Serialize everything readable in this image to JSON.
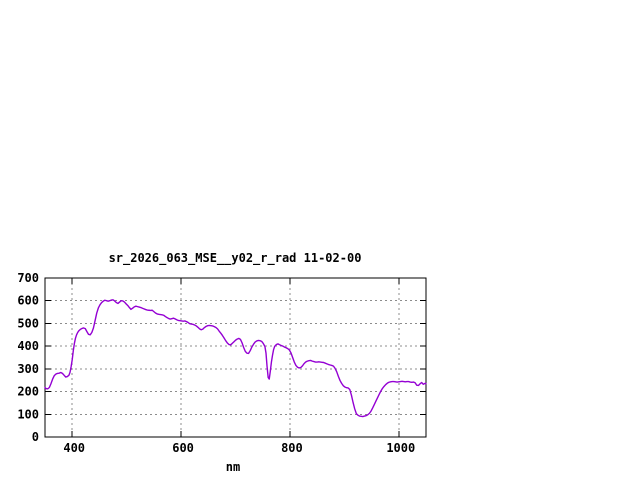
{
  "window": {
    "background_color": "#ffffff"
  },
  "chart_data": {
    "type": "line",
    "title": "sr_2026_063_MSE__y02_r_rad 11-02-00",
    "xlabel": "nm",
    "ylabel": "",
    "xlim": [
      350,
      1050
    ],
    "ylim": [
      0,
      700
    ],
    "xticks": [
      400,
      600,
      800,
      1000
    ],
    "yticks": [
      0,
      100,
      200,
      300,
      400,
      500,
      600,
      700
    ],
    "grid": true,
    "legend": "none",
    "line_color": "#9400d3",
    "grid_color": "#8c8c8c",
    "border_color": "#000000",
    "text_color": "#000000",
    "series": [
      {
        "name": "sr_2026_063_MSE__y02_r_rad",
        "points": [
          [
            350,
            218
          ],
          [
            352,
            213
          ],
          [
            355,
            212
          ],
          [
            358,
            218
          ],
          [
            361,
            235
          ],
          [
            364,
            255
          ],
          [
            367,
            270
          ],
          [
            370,
            277
          ],
          [
            373,
            280
          ],
          [
            376,
            281
          ],
          [
            379,
            284
          ],
          [
            382,
            280
          ],
          [
            385,
            272
          ],
          [
            388,
            264
          ],
          [
            391,
            266
          ],
          [
            394,
            272
          ],
          [
            396,
            285
          ],
          [
            398,
            310
          ],
          [
            400,
            340
          ],
          [
            402,
            380
          ],
          [
            404,
            412
          ],
          [
            406,
            435
          ],
          [
            408,
            450
          ],
          [
            410,
            460
          ],
          [
            412,
            467
          ],
          [
            415,
            474
          ],
          [
            418,
            478
          ],
          [
            421,
            480
          ],
          [
            424,
            477
          ],
          [
            427,
            464
          ],
          [
            430,
            452
          ],
          [
            433,
            450
          ],
          [
            436,
            460
          ],
          [
            439,
            480
          ],
          [
            442,
            512
          ],
          [
            445,
            545
          ],
          [
            448,
            568
          ],
          [
            451,
            582
          ],
          [
            454,
            592
          ],
          [
            457,
            598
          ],
          [
            460,
            602
          ],
          [
            463,
            600
          ],
          [
            466,
            598
          ],
          [
            469,
            600
          ],
          [
            472,
            603
          ],
          [
            475,
            604
          ],
          [
            478,
            599
          ],
          [
            481,
            592
          ],
          [
            484,
            588
          ],
          [
            487,
            594
          ],
          [
            490,
            600
          ],
          [
            493,
            599
          ],
          [
            496,
            594
          ],
          [
            499,
            586
          ],
          [
            502,
            579
          ],
          [
            505,
            570
          ],
          [
            508,
            562
          ],
          [
            511,
            567
          ],
          [
            514,
            573
          ],
          [
            517,
            576
          ],
          [
            520,
            574
          ],
          [
            523,
            572
          ],
          [
            526,
            570
          ],
          [
            529,
            567
          ],
          [
            532,
            564
          ],
          [
            535,
            561
          ],
          [
            538,
            559
          ],
          [
            541,
            558
          ],
          [
            544,
            557
          ],
          [
            547,
            558
          ],
          [
            550,
            552
          ],
          [
            553,
            546
          ],
          [
            556,
            542
          ],
          [
            559,
            540
          ],
          [
            562,
            539
          ],
          [
            565,
            538
          ],
          [
            568,
            536
          ],
          [
            571,
            531
          ],
          [
            574,
            526
          ],
          [
            577,
            522
          ],
          [
            580,
            519
          ],
          [
            583,
            521
          ],
          [
            586,
            523
          ],
          [
            589,
            520
          ],
          [
            592,
            516
          ],
          [
            595,
            513
          ],
          [
            598,
            512
          ],
          [
            601,
            511
          ],
          [
            604,
            510
          ],
          [
            607,
            511
          ],
          [
            610,
            508
          ],
          [
            613,
            504
          ],
          [
            616,
            499
          ],
          [
            619,
            497
          ],
          [
            622,
            496
          ],
          [
            625,
            493
          ],
          [
            628,
            489
          ],
          [
            631,
            483
          ],
          [
            634,
            476
          ],
          [
            637,
            472
          ],
          [
            640,
            475
          ],
          [
            643,
            482
          ],
          [
            646,
            487
          ],
          [
            649,
            490
          ],
          [
            652,
            491
          ],
          [
            655,
            490
          ],
          [
            658,
            489
          ],
          [
            661,
            486
          ],
          [
            664,
            482
          ],
          [
            667,
            476
          ],
          [
            670,
            466
          ],
          [
            673,
            457
          ],
          [
            676,
            447
          ],
          [
            679,
            436
          ],
          [
            682,
            424
          ],
          [
            685,
            414
          ],
          [
            688,
            407
          ],
          [
            691,
            406
          ],
          [
            694,
            412
          ],
          [
            697,
            419
          ],
          [
            700,
            426
          ],
          [
            703,
            431
          ],
          [
            706,
            434
          ],
          [
            709,
            430
          ],
          [
            712,
            415
          ],
          [
            715,
            394
          ],
          [
            718,
            377
          ],
          [
            721,
            369
          ],
          [
            724,
            368
          ],
          [
            727,
            380
          ],
          [
            730,
            396
          ],
          [
            733,
            408
          ],
          [
            736,
            418
          ],
          [
            739,
            423
          ],
          [
            742,
            425
          ],
          [
            745,
            424
          ],
          [
            748,
            421
          ],
          [
            751,
            412
          ],
          [
            754,
            399
          ],
          [
            756,
            370
          ],
          [
            758,
            310
          ],
          [
            760,
            262
          ],
          [
            762,
            255
          ],
          [
            764,
            290
          ],
          [
            766,
            330
          ],
          [
            768,
            360
          ],
          [
            770,
            385
          ],
          [
            772,
            399
          ],
          [
            775,
            407
          ],
          [
            778,
            410
          ],
          [
            781,
            406
          ],
          [
            784,
            403
          ],
          [
            787,
            400
          ],
          [
            790,
            396
          ],
          [
            793,
            393
          ],
          [
            796,
            389
          ],
          [
            799,
            383
          ],
          [
            802,
            370
          ],
          [
            805,
            350
          ],
          [
            808,
            330
          ],
          [
            811,
            315
          ],
          [
            814,
            307
          ],
          [
            817,
            304
          ],
          [
            820,
            306
          ],
          [
            823,
            313
          ],
          [
            826,
            323
          ],
          [
            829,
            330
          ],
          [
            832,
            334
          ],
          [
            835,
            336
          ],
          [
            838,
            337
          ],
          [
            841,
            334
          ],
          [
            844,
            332
          ],
          [
            847,
            330
          ],
          [
            850,
            330
          ],
          [
            853,
            331
          ],
          [
            856,
            330
          ],
          [
            859,
            329
          ],
          [
            862,
            328
          ],
          [
            865,
            325
          ],
          [
            868,
            322
          ],
          [
            871,
            319
          ],
          [
            874,
            317
          ],
          [
            877,
            315
          ],
          [
            880,
            312
          ],
          [
            883,
            302
          ],
          [
            886,
            287
          ],
          [
            889,
            267
          ],
          [
            892,
            249
          ],
          [
            895,
            236
          ],
          [
            898,
            226
          ],
          [
            901,
            220
          ],
          [
            904,
            217
          ],
          [
            907,
            216
          ],
          [
            910,
            209
          ],
          [
            913,
            184
          ],
          [
            916,
            152
          ],
          [
            919,
            124
          ],
          [
            922,
            103
          ],
          [
            925,
            96
          ],
          [
            928,
            92
          ],
          [
            931,
            91
          ],
          [
            934,
            90
          ],
          [
            937,
            92
          ],
          [
            940,
            94
          ],
          [
            943,
            98
          ],
          [
            946,
            104
          ],
          [
            949,
            114
          ],
          [
            952,
            128
          ],
          [
            955,
            143
          ],
          [
            958,
            158
          ],
          [
            961,
            173
          ],
          [
            964,
            188
          ],
          [
            967,
            202
          ],
          [
            970,
            214
          ],
          [
            973,
            223
          ],
          [
            976,
            231
          ],
          [
            979,
            237
          ],
          [
            982,
            241
          ],
          [
            985,
            243
          ],
          [
            988,
            244
          ],
          [
            991,
            244
          ],
          [
            994,
            243
          ],
          [
            997,
            242
          ],
          [
            1000,
            243
          ],
          [
            1003,
            244
          ],
          [
            1006,
            245
          ],
          [
            1009,
            244
          ],
          [
            1012,
            243
          ],
          [
            1015,
            244
          ],
          [
            1018,
            244
          ],
          [
            1021,
            242
          ],
          [
            1024,
            241
          ],
          [
            1027,
            242
          ],
          [
            1030,
            239
          ],
          [
            1033,
            228
          ],
          [
            1036,
            227
          ],
          [
            1039,
            234
          ],
          [
            1042,
            240
          ],
          [
            1045,
            232
          ],
          [
            1048,
            236
          ],
          [
            1050,
            235
          ]
        ]
      }
    ]
  }
}
